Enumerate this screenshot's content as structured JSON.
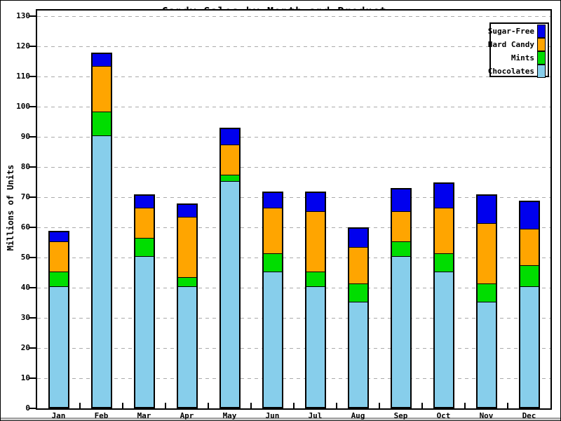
{
  "chart_data": {
    "type": "bar",
    "stacked": true,
    "title": "Candy Sales by Month and Product",
    "xlabel": "",
    "ylabel": "Millions of Units",
    "ylim": [
      0,
      130
    ],
    "yticks": [
      0,
      10,
      20,
      30,
      40,
      50,
      60,
      70,
      80,
      90,
      100,
      110,
      120,
      130
    ],
    "grid": "dashed-horizontal",
    "legend_position": "top-right",
    "categories": [
      "Jan",
      "Feb",
      "Mar",
      "Apr",
      "May",
      "Jun",
      "Jul",
      "Aug",
      "Sep",
      "Oct",
      "Nov",
      "Dec"
    ],
    "series": [
      {
        "name": "Chocolates",
        "color": "#87ceeb",
        "values": [
          40,
          90,
          50,
          40,
          75,
          45,
          40,
          35,
          50,
          45,
          35,
          40
        ]
      },
      {
        "name": "Mints",
        "color": "#00dd00",
        "values": [
          5,
          8,
          6,
          3,
          2,
          6,
          5,
          6,
          5,
          6,
          6,
          7
        ]
      },
      {
        "name": "Hard Candy",
        "color": "#ffa500",
        "values": [
          10,
          15,
          10,
          20,
          10,
          15,
          20,
          12,
          10,
          15,
          20,
          12
        ]
      },
      {
        "name": "Sugar-Free",
        "color": "#0000ee",
        "values": [
          3,
          4,
          4,
          4,
          5,
          5,
          6,
          6,
          7,
          8,
          9,
          9
        ]
      }
    ],
    "totals": [
      58,
      117,
      70,
      67,
      92,
      71,
      71,
      59,
      72,
      74,
      70,
      68
    ],
    "legend_entries": [
      "Sugar-Free",
      "Hard Candy",
      "Mints",
      "Chocolates"
    ]
  },
  "colors": {
    "axis": "#000000",
    "grid": "#aaaaaa",
    "background": "#ffffff"
  }
}
